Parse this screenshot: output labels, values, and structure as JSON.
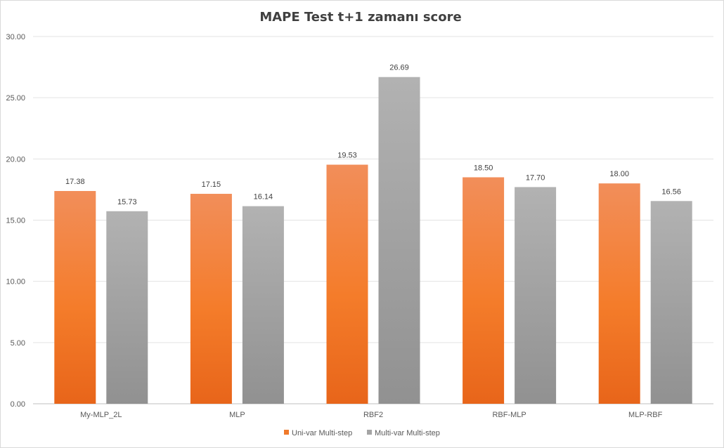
{
  "chart_data": {
    "type": "bar",
    "title": "MAPE Test t+1 zamanı score",
    "xlabel": "",
    "ylabel": "",
    "ylim": [
      0,
      30
    ],
    "yticks": [
      "0.00",
      "5.00",
      "10.00",
      "15.00",
      "20.00",
      "25.00",
      "30.00"
    ],
    "grid": true,
    "legend_position": "bottom",
    "categories": [
      "My-MLP_2L",
      "MLP",
      "RBF2",
      "RBF-MLP",
      "MLP-RBF"
    ],
    "series": [
      {
        "name": "Uni-var Multi-step",
        "values": [
          17.38,
          17.15,
          19.53,
          18.5,
          18.0
        ],
        "labels": [
          "17.38",
          "17.15",
          "19.53",
          "18.50",
          "18.00"
        ],
        "color": "#F07A2B"
      },
      {
        "name": "Multi-var Multi-step",
        "values": [
          15.73,
          16.14,
          26.69,
          17.7,
          16.56
        ],
        "labels": [
          "15.73",
          "16.14",
          "26.69",
          "17.70",
          "16.56"
        ],
        "color": "#A5A5A5"
      }
    ]
  }
}
